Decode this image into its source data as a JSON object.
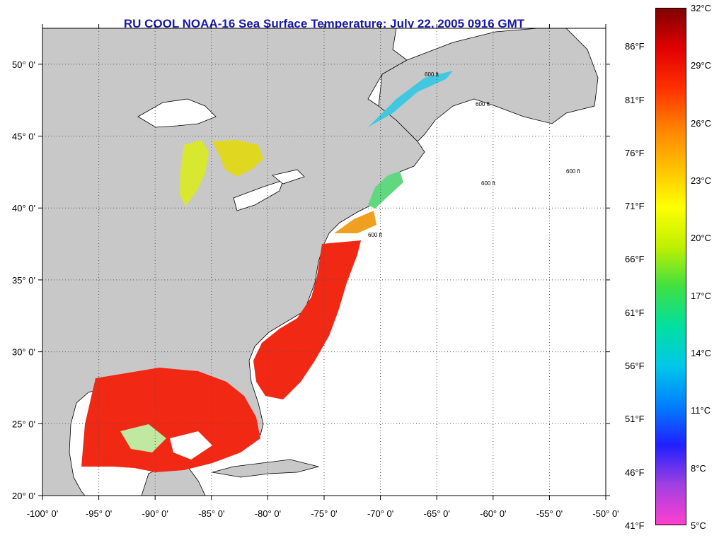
{
  "title": "RU COOL  NOAA-16  Sea Surface Temperature:  July 22, 2005 0916 GMT",
  "colors": {
    "title": "#1a1aa8",
    "land": "#c8c8c8",
    "water": "#ffffff",
    "coast": "#000000",
    "sst_warm": "#f02814"
  },
  "map": {
    "lon_range": [
      -100,
      -50
    ],
    "lat_range": [
      20,
      52.5
    ],
    "lon_ticks": [
      "-100° 0'",
      "-95° 0'",
      "-90° 0'",
      "-85° 0'",
      "-80° 0'",
      "-75° 0'",
      "-70° 0'",
      "-65° 0'",
      "-60° 0'",
      "-55° 0'",
      "-50° 0'"
    ],
    "lat_ticks": [
      "20° 0'",
      "25° 0'",
      "30° 0'",
      "35° 0'",
      "40° 0'",
      "45° 0'",
      "50° 0'"
    ],
    "grid": "dotted",
    "contour_label": "600 ft"
  },
  "colorbar": {
    "range_c": [
      5,
      32
    ],
    "celsius_labels": [
      "32°C",
      "29°C",
      "26°C",
      "23°C",
      "20°C",
      "17°C",
      "14°C",
      "11°C",
      "8°C",
      "5°C"
    ],
    "fahrenheit_labels": [
      "86°F",
      "81°F",
      "76°F",
      "71°F",
      "66°F",
      "61°F",
      "56°F",
      "51°F",
      "46°F",
      "41°F"
    ],
    "stops": [
      "#ff40d0",
      "#a040e0",
      "#2020ff",
      "#0080ff",
      "#00c8e8",
      "#00e0a0",
      "#40e040",
      "#c0f000",
      "#ffff00",
      "#ffc000",
      "#ff8000",
      "#ff3000",
      "#e00000",
      "#800000"
    ]
  }
}
